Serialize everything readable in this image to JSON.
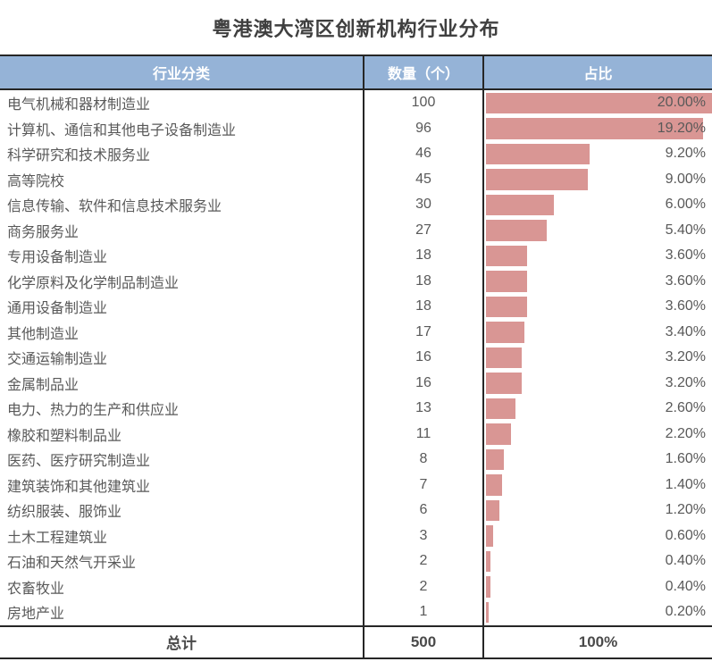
{
  "title": "粤港澳大湾区创新机构行业分布",
  "colors": {
    "header_bg": "#95B3D7",
    "header_text": "#FFFFFF",
    "bar": "#D99694",
    "body_text": "#595959",
    "border": "#262626"
  },
  "table": {
    "headers": [
      "行业分类",
      "数量（个）",
      "占比"
    ],
    "rows": [
      {
        "label": "电气机械和器材制造业",
        "count": "100",
        "pct": 20.0,
        "pct_label": "20.00%"
      },
      {
        "label": "计算机、通信和其他电子设备制造业",
        "count": "96",
        "pct": 19.2,
        "pct_label": "19.20%"
      },
      {
        "label": "科学研究和技术服务业",
        "count": "46",
        "pct": 9.2,
        "pct_label": "9.20%"
      },
      {
        "label": "高等院校",
        "count": "45",
        "pct": 9.0,
        "pct_label": "9.00%"
      },
      {
        "label": "信息传输、软件和信息技术服务业",
        "count": "30",
        "pct": 6.0,
        "pct_label": "6.00%"
      },
      {
        "label": "商务服务业",
        "count": "27",
        "pct": 5.4,
        "pct_label": "5.40%"
      },
      {
        "label": "专用设备制造业",
        "count": "18",
        "pct": 3.6,
        "pct_label": "3.60%"
      },
      {
        "label": "化学原料及化学制品制造业",
        "count": "18",
        "pct": 3.6,
        "pct_label": "3.60%"
      },
      {
        "label": "通用设备制造业",
        "count": "18",
        "pct": 3.6,
        "pct_label": "3.60%"
      },
      {
        "label": "其他制造业",
        "count": "17",
        "pct": 3.4,
        "pct_label": "3.40%"
      },
      {
        "label": "交通运输制造业",
        "count": "16",
        "pct": 3.2,
        "pct_label": "3.20%"
      },
      {
        "label": "金属制品业",
        "count": "16",
        "pct": 3.2,
        "pct_label": "3.20%"
      },
      {
        "label": "电力、热力的生产和供应业",
        "count": "13",
        "pct": 2.6,
        "pct_label": "2.60%"
      },
      {
        "label": "橡胶和塑料制品业",
        "count": "11",
        "pct": 2.2,
        "pct_label": "2.20%"
      },
      {
        "label": "医药、医疗研究制造业",
        "count": "8",
        "pct": 1.6,
        "pct_label": "1.60%"
      },
      {
        "label": "建筑装饰和其他建筑业",
        "count": "7",
        "pct": 1.4,
        "pct_label": "1.40%"
      },
      {
        "label": "纺织服装、服饰业",
        "count": "6",
        "pct": 1.2,
        "pct_label": "1.20%"
      },
      {
        "label": "土木工程建筑业",
        "count": "3",
        "pct": 0.6,
        "pct_label": "0.60%"
      },
      {
        "label": "石油和天然气开采业",
        "count": "2",
        "pct": 0.4,
        "pct_label": "0.40%"
      },
      {
        "label": "农畜牧业",
        "count": "2",
        "pct": 0.4,
        "pct_label": "0.40%"
      },
      {
        "label": "房地产业",
        "count": "1",
        "pct": 0.2,
        "pct_label": "0.20%"
      }
    ],
    "total": {
      "label": "总计",
      "count": "500",
      "pct_label": "100%"
    }
  },
  "chart_data": {
    "type": "bar",
    "title": "粤港澳大湾区创新机构行业分布",
    "orientation": "horizontal",
    "categories": [
      "电气机械和器材制造业",
      "计算机、通信和其他电子设备制造业",
      "科学研究和技术服务业",
      "高等院校",
      "信息传输、软件和信息技术服务业",
      "商务服务业",
      "专用设备制造业",
      "化学原料及化学制品制造业",
      "通用设备制造业",
      "其他制造业",
      "交通运输制造业",
      "金属制品业",
      "电力、热力的生产和供应业",
      "橡胶和塑料制品业",
      "医药、医疗研究制造业",
      "建筑装饰和其他建筑业",
      "纺织服装、服饰业",
      "土木工程建筑业",
      "石油和天然气开采业",
      "农畜牧业",
      "房地产业"
    ],
    "series": [
      {
        "name": "数量（个）",
        "values": [
          100,
          96,
          46,
          45,
          30,
          27,
          18,
          18,
          18,
          17,
          16,
          16,
          13,
          11,
          8,
          7,
          6,
          3,
          2,
          2,
          1
        ]
      },
      {
        "name": "占比",
        "unit": "%",
        "values": [
          20.0,
          19.2,
          9.2,
          9.0,
          6.0,
          5.4,
          3.6,
          3.6,
          3.6,
          3.4,
          3.2,
          3.2,
          2.6,
          2.2,
          1.6,
          1.4,
          1.2,
          0.6,
          0.4,
          0.4,
          0.2
        ]
      }
    ],
    "total": {
      "label": "总计",
      "count": 500,
      "percent_label": "100%"
    },
    "bar_scale_max_percent": 20,
    "bar_color": "#D99694",
    "legend_position": "none",
    "grid": false
  }
}
